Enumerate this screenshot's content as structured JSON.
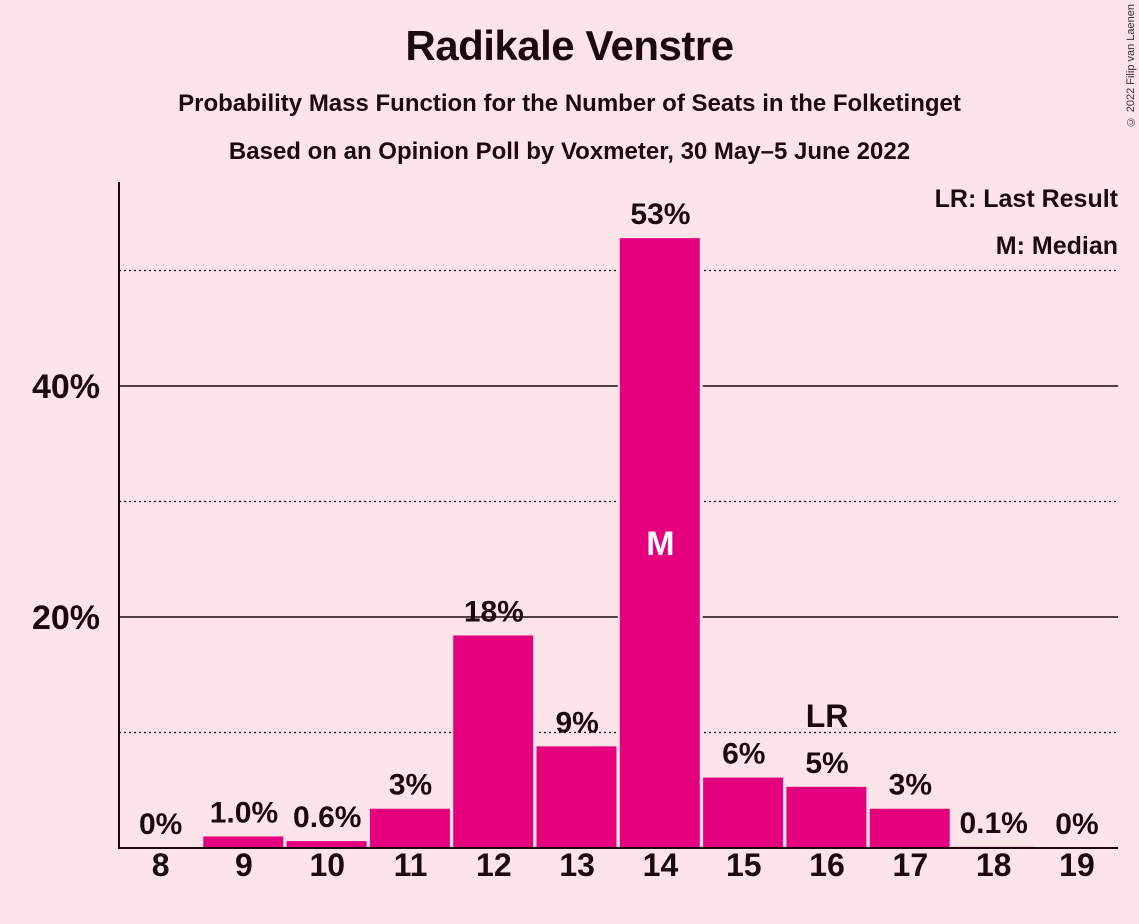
{
  "chart_data": {
    "type": "bar",
    "title": "Radikale Venstre",
    "subtitle": "Probability Mass Function for the Number of Seats in the Folketinget",
    "subtitle2": "Based on an Opinion Poll by Voxmeter, 30 May–5 June 2022",
    "copyright": "© 2022 Filip van Laenen",
    "categories": [
      "8",
      "9",
      "10",
      "11",
      "12",
      "13",
      "14",
      "15",
      "16",
      "17",
      "18",
      "19"
    ],
    "values": [
      0,
      1.0,
      0.6,
      3.4,
      18.4,
      8.8,
      52.8,
      6.1,
      5.3,
      3.4,
      0.1,
      0
    ],
    "value_labels": [
      "0%",
      "1.0%",
      "0.6%",
      "3%",
      "18%",
      "9%",
      "53%",
      "6%",
      "5%",
      "3%",
      "0.1%",
      "0%"
    ],
    "ylim": [
      0,
      57.5
    ],
    "y_ticks": [
      {
        "value": 20,
        "label": "20%"
      },
      {
        "value": 40,
        "label": "40%"
      }
    ],
    "y_minor_gridlines": [
      10,
      30,
      50
    ],
    "bar_color": "#e5007d",
    "median": {
      "category": "14",
      "label": "M"
    },
    "last_result": {
      "category": "16",
      "label": "LR"
    },
    "legend": [
      "LR: Last Result",
      "M: Median"
    ],
    "legend_position": "top-right"
  }
}
